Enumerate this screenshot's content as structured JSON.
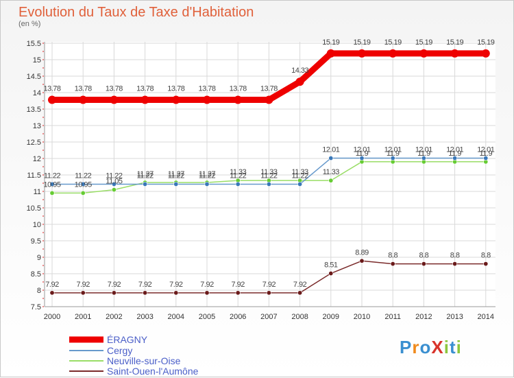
{
  "title": "Evolution du Taux de Taxe d'Habitation",
  "unit_label": "(en %)",
  "logo_text": "ProXiti",
  "colors": {
    "title": "#e0603a",
    "grid": "#d9d9d9",
    "axis_tick": "#e02020"
  },
  "chart_data": {
    "type": "line",
    "title": "Evolution du Taux de Taxe d'Habitation",
    "ylabel": "(en %)",
    "xlabel": "",
    "ylim": [
      7.5,
      15.5
    ],
    "grid": true,
    "legend_position": "bottom-left",
    "x": [
      "2000",
      "2001",
      "2002",
      "2003",
      "2004",
      "2005",
      "2006",
      "2007",
      "2008",
      "2009",
      "2010",
      "2011",
      "2012",
      "2013",
      "2014"
    ],
    "y_ticks": [
      "7.5",
      "8",
      "8.5",
      "9",
      "9.5",
      "10",
      "10.5",
      "11",
      "11.5",
      "12",
      "12.5",
      "13",
      "13.5",
      "14",
      "14.5",
      "15",
      "15.5"
    ],
    "series": [
      {
        "name": "ÉRAGNY",
        "color": "#ee0000",
        "width": 9,
        "values": [
          13.78,
          13.78,
          13.78,
          13.78,
          13.78,
          13.78,
          13.78,
          13.78,
          14.33,
          15.19,
          15.19,
          15.19,
          15.19,
          15.19,
          15.19
        ],
        "labels": [
          "13.78",
          "13.78",
          "13.78",
          "13.78",
          "13.78",
          "13.78",
          "13.78",
          "13.78",
          "14.33",
          "15.19",
          "15.19",
          "15.19",
          "15.19",
          "15.19",
          "15.19"
        ]
      },
      {
        "name": "Cergy",
        "color": "#6699cc",
        "width": 1.5,
        "marker": "#3a78b8",
        "values": [
          11.22,
          11.22,
          11.22,
          11.22,
          11.22,
          11.22,
          11.22,
          11.22,
          11.22,
          12.01,
          12.01,
          12.01,
          12.01,
          12.01,
          12.01
        ],
        "labels": [
          "11.22",
          "11.22",
          "11.22",
          "11.22",
          "11.22",
          "11.22",
          "11.22",
          "11.22",
          "11.22",
          "12.01",
          "12.01",
          "12.01",
          "12.01",
          "12.01",
          "12.01"
        ]
      },
      {
        "name": "Neuville-sur-Oise",
        "color": "#99dd66",
        "width": 1.5,
        "marker": "#66cc33",
        "values": [
          10.95,
          10.95,
          11.05,
          11.27,
          11.27,
          11.27,
          11.33,
          11.33,
          11.33,
          11.33,
          11.9,
          11.9,
          11.9,
          11.9,
          11.9
        ],
        "labels": [
          "10.95",
          "10.95",
          "11.05",
          "11.27",
          "11.27",
          "11.27",
          "11.33",
          "11.33",
          "11.33",
          "11.33",
          "11.9",
          "11.9",
          "11.9",
          "11.9",
          "11.9"
        ]
      },
      {
        "name": "Saint-Ouen-l'Aumône",
        "color": "#7a2a2a",
        "width": 1.5,
        "marker": "#6a1a1a",
        "values": [
          7.92,
          7.92,
          7.92,
          7.92,
          7.92,
          7.92,
          7.92,
          7.92,
          7.92,
          8.51,
          8.89,
          8.8,
          8.8,
          8.8,
          8.8
        ],
        "labels": [
          "7.92",
          "7.92",
          "7.92",
          "7.92",
          "7.92",
          "7.92",
          "7.92",
          "7.92",
          "7.92",
          "8.51",
          "8.89",
          "8.8",
          "8.8",
          "8.8",
          "8.8"
        ]
      }
    ]
  }
}
